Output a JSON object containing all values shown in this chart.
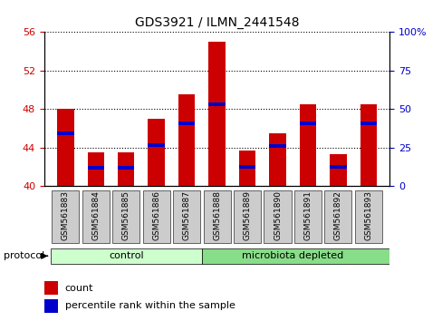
{
  "title": "GDS3921 / ILMN_2441548",
  "samples": [
    "GSM561883",
    "GSM561884",
    "GSM561885",
    "GSM561886",
    "GSM561887",
    "GSM561888",
    "GSM561889",
    "GSM561890",
    "GSM561891",
    "GSM561892",
    "GSM561893"
  ],
  "count_values": [
    48.0,
    43.5,
    43.5,
    47.0,
    49.5,
    55.0,
    43.7,
    45.5,
    48.5,
    43.3,
    48.5
  ],
  "percentile_values": [
    45.5,
    41.9,
    41.9,
    44.3,
    46.5,
    48.5,
    42.0,
    44.2,
    46.5,
    42.0,
    46.5
  ],
  "y_min": 40,
  "y_max": 56,
  "y_ticks_left": [
    40,
    44,
    48,
    52,
    56
  ],
  "y_ticks_right": [
    0,
    25,
    50,
    75,
    100
  ],
  "bar_color": "#cc0000",
  "blue_color": "#0000cc",
  "bar_width": 0.55,
  "background_color": "#ffffff",
  "left_axis_color": "#cc0000",
  "right_axis_color": "#0000cc",
  "tick_label_bg": "#cccccc",
  "control_color": "#ccffcc",
  "depleted_color": "#88dd88",
  "legend_count_color": "#cc0000",
  "legend_pct_color": "#0000cc"
}
